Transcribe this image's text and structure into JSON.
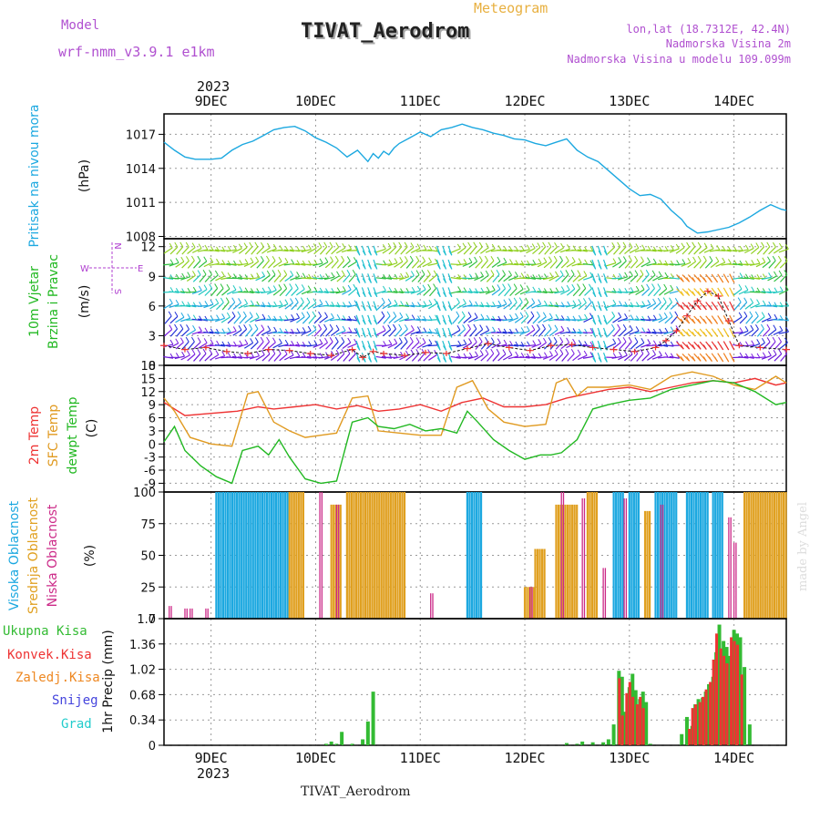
{
  "header": {
    "model_label": "Model",
    "model_name": "wrf-nmm_v3.9.1 e1km",
    "meteogram_label": "Meteogram",
    "station_title": "TIVAT_Aerodrom",
    "coords": "lon,lat (18.7312E, 42.4N)",
    "elevation": "Nadmorska Visina 2m",
    "model_elevation": "Nadmorska Visina u modelu 109.099m",
    "watermark": "made by Angel",
    "footer_station": "TIVAT_Aerodrom"
  },
  "colors": {
    "pressure": "#1ca8e0",
    "wind_title": "#22b822",
    "wind_compass": "#b040d0",
    "temp2m": "#ee3333",
    "sfc": "#e09a20",
    "dewpt": "#22b822",
    "cloud_high": "#1ca8e0",
    "cloud_mid": "#e0a020",
    "cloud_low": "#cc2a88",
    "precip_total": "#33bb33",
    "precip_conv": "#ee3333",
    "precip_frozen": "#ee8822",
    "snow": "#4444dd",
    "hail": "#22cccc",
    "header_purple": "#b050d0",
    "header_orange": "#e8b040"
  },
  "chart_data": [
    {
      "type": "line",
      "panel": "pressure",
      "ylabel": [
        "Pritisak na nivou mora",
        "(hPa)"
      ],
      "yticks": [
        1008,
        1011,
        1014,
        1017
      ],
      "ylim": [
        1007.8,
        1018.8
      ],
      "x_day_labels": [
        "9DEC",
        "10DEC",
        "11DEC",
        "12DEC",
        "13DEC",
        "14DEC"
      ],
      "x_top_year": "2023",
      "x_start_day": 8.55,
      "x_end_day": 14.5,
      "series": [
        {
          "x": [
            8.55,
            8.65,
            8.75,
            8.85,
            9.0,
            9.1,
            9.2,
            9.3,
            9.4,
            9.5,
            9.6,
            9.7,
            9.8,
            9.9,
            10.0,
            10.1,
            10.2,
            10.3,
            10.4,
            10.5,
            10.55,
            10.6,
            10.65,
            10.7,
            10.75,
            10.8,
            10.9,
            11.0,
            11.1,
            11.2,
            11.3,
            11.4,
            11.5,
            11.6,
            11.7,
            11.8,
            11.9,
            12.0,
            12.1,
            12.2,
            12.3,
            12.4,
            12.5,
            12.6,
            12.7,
            12.8,
            12.9,
            13.0,
            13.1,
            13.2,
            13.3,
            13.4,
            13.5,
            13.55,
            13.65,
            13.75,
            13.85,
            13.95,
            14.05,
            14.15,
            14.25,
            14.35,
            14.45,
            14.5
          ],
          "values": [
            1016.3,
            1015.6,
            1015.0,
            1014.8,
            1014.8,
            1014.9,
            1015.6,
            1016.1,
            1016.4,
            1016.9,
            1017.4,
            1017.6,
            1017.7,
            1017.3,
            1016.7,
            1016.3,
            1015.8,
            1015.0,
            1015.6,
            1014.6,
            1015.3,
            1014.9,
            1015.5,
            1015.2,
            1015.8,
            1016.2,
            1016.7,
            1017.2,
            1016.8,
            1017.4,
            1017.6,
            1017.9,
            1017.6,
            1017.4,
            1017.1,
            1016.9,
            1016.6,
            1016.5,
            1016.2,
            1016.0,
            1016.3,
            1016.6,
            1015.6,
            1015.0,
            1014.6,
            1013.8,
            1013.0,
            1012.2,
            1011.6,
            1011.7,
            1011.3,
            1010.3,
            1009.5,
            1008.9,
            1008.3,
            1008.4,
            1008.6,
            1008.8,
            1009.2,
            1009.7,
            1010.3,
            1010.8,
            1010.4,
            1010.3
          ]
        }
      ]
    },
    {
      "type": "scatter",
      "panel": "wind",
      "ylabel": [
        "10m Vjetar",
        "Brzina i Pravac",
        "(m/s)"
      ],
      "compass": [
        "N",
        "S",
        "W",
        "E"
      ],
      "yticks": [
        0,
        3,
        6,
        9,
        12
      ],
      "ylim": [
        0,
        12.8
      ],
      "series": [
        {
          "name": "wind_speed",
          "x": [
            8.55,
            8.75,
            8.95,
            9.15,
            9.35,
            9.55,
            9.75,
            9.95,
            10.15,
            10.35,
            10.45,
            10.55,
            10.65,
            10.85,
            11.05,
            11.25,
            11.45,
            11.65,
            11.85,
            12.05,
            12.25,
            12.45,
            12.65,
            12.85,
            13.05,
            13.25,
            13.35,
            13.45,
            13.55,
            13.65,
            13.75,
            13.85,
            13.95,
            14.05,
            14.25,
            14.5
          ],
          "values": [
            2.0,
            1.6,
            1.8,
            1.4,
            1.2,
            1.6,
            1.5,
            1.2,
            1.0,
            1.6,
            0.8,
            1.4,
            1.2,
            1.0,
            1.3,
            1.2,
            1.7,
            2.2,
            1.8,
            1.5,
            2.0,
            2.1,
            1.8,
            1.6,
            1.4,
            1.8,
            2.5,
            3.5,
            5.0,
            6.5,
            7.5,
            7.0,
            4.5,
            2.0,
            1.8,
            1.6
          ]
        }
      ]
    },
    {
      "type": "line",
      "panel": "temperature",
      "ylabel": [
        "2m Temp",
        "SFC Temp",
        "dewpt Temp",
        "(C)"
      ],
      "yticks": [
        -9,
        -6,
        -3,
        0,
        3,
        6,
        9,
        12,
        15,
        18
      ],
      "ylim": [
        -11,
        18
      ],
      "series": [
        {
          "name": "2m Temp",
          "x": [
            8.55,
            8.75,
            9.0,
            9.25,
            9.45,
            9.6,
            9.8,
            10.0,
            10.2,
            10.4,
            10.6,
            10.8,
            11.0,
            11.2,
            11.4,
            11.6,
            11.8,
            12.0,
            12.2,
            12.4,
            12.6,
            12.8,
            13.0,
            13.2,
            13.4,
            13.6,
            13.8,
            14.0,
            14.2,
            14.4,
            14.5
          ],
          "values": [
            9.5,
            6.5,
            7.0,
            7.5,
            8.5,
            8.0,
            8.5,
            9.0,
            8.0,
            8.8,
            7.5,
            8.0,
            9.0,
            7.5,
            9.5,
            10.5,
            8.5,
            8.5,
            9.0,
            10.5,
            11.5,
            12.5,
            13.0,
            12.0,
            13.0,
            14.0,
            14.5,
            14.0,
            15.0,
            13.5,
            14.0
          ]
        },
        {
          "name": "SFC Temp",
          "x": [
            8.55,
            8.65,
            8.8,
            9.0,
            9.2,
            9.35,
            9.45,
            9.6,
            9.75,
            9.9,
            10.05,
            10.2,
            10.35,
            10.5,
            10.6,
            10.8,
            11.0,
            11.2,
            11.35,
            11.5,
            11.65,
            11.8,
            12.0,
            12.2,
            12.3,
            12.4,
            12.5,
            12.6,
            12.8,
            13.0,
            13.2,
            13.4,
            13.6,
            13.8,
            14.0,
            14.2,
            14.4,
            14.5
          ],
          "values": [
            10.5,
            7.5,
            1.5,
            0.0,
            -0.5,
            11.5,
            12.0,
            5.0,
            3.0,
            1.5,
            2.0,
            2.5,
            10.5,
            11.0,
            3.0,
            2.5,
            2.0,
            2.0,
            13.0,
            14.5,
            8.0,
            5.0,
            4.0,
            4.5,
            14.0,
            15.0,
            11.0,
            13.0,
            13.0,
            13.5,
            12.5,
            15.5,
            16.5,
            15.5,
            13.5,
            12.5,
            15.5,
            14.0
          ]
        },
        {
          "name": "dewpt Temp",
          "x": [
            8.55,
            8.65,
            8.75,
            8.9,
            9.05,
            9.2,
            9.3,
            9.45,
            9.55,
            9.65,
            9.75,
            9.9,
            10.05,
            10.2,
            10.35,
            10.5,
            10.6,
            10.75,
            10.9,
            11.05,
            11.2,
            11.35,
            11.45,
            11.55,
            11.7,
            11.85,
            12.0,
            12.15,
            12.25,
            12.35,
            12.5,
            12.65,
            12.8,
            13.0,
            13.2,
            13.4,
            13.6,
            13.8,
            14.0,
            14.2,
            14.4,
            14.5
          ],
          "values": [
            0.5,
            4.0,
            -1.5,
            -5.0,
            -7.5,
            -9.0,
            -1.5,
            -0.5,
            -2.5,
            1.0,
            -3.0,
            -8.0,
            -9.0,
            -8.5,
            5.0,
            6.0,
            4.0,
            3.5,
            4.5,
            3.0,
            3.5,
            2.5,
            7.5,
            5.0,
            1.0,
            -1.5,
            -3.5,
            -2.5,
            -2.5,
            -2.0,
            1.0,
            8.0,
            9.0,
            10.0,
            10.5,
            12.5,
            13.5,
            14.5,
            14.0,
            12.0,
            9.0,
            9.5
          ]
        }
      ]
    },
    {
      "type": "bar",
      "panel": "cloud",
      "ylabel": [
        "Visoka Oblacnost",
        "Srednja Oblacnost",
        "Niska Oblacnost",
        "(%)"
      ],
      "yticks": [
        0,
        25,
        50,
        75,
        100
      ],
      "ylim": [
        0,
        100
      ],
      "series": [
        {
          "name": "Visoka Oblacnost",
          "segments": [
            [
              9.05,
              9.6,
              100
            ],
            [
              9.6,
              9.75,
              100
            ],
            [
              11.45,
              11.6,
              100
            ],
            [
              12.85,
              12.95,
              100
            ],
            [
              13.0,
              13.1,
              100
            ],
            [
              13.25,
              13.45,
              100
            ],
            [
              13.55,
              13.75,
              100
            ],
            [
              13.8,
              13.9,
              100
            ]
          ]
        },
        {
          "name": "Srednja Oblacnost",
          "segments": [
            [
              9.75,
              9.9,
              100
            ],
            [
              10.15,
              10.25,
              90
            ],
            [
              10.3,
              10.85,
              100
            ],
            [
              12.0,
              12.1,
              25
            ],
            [
              12.1,
              12.2,
              55
            ],
            [
              12.3,
              12.5,
              90
            ],
            [
              12.6,
              12.7,
              100
            ],
            [
              13.15,
              13.2,
              85
            ],
            [
              14.1,
              14.5,
              100
            ]
          ]
        },
        {
          "name": "Niska Oblacnost",
          "segments": [
            [
              8.6,
              8.62,
              10
            ],
            [
              8.75,
              8.77,
              8
            ],
            [
              8.8,
              8.82,
              8
            ],
            [
              8.95,
              8.97,
              8
            ],
            [
              10.04,
              10.06,
              100
            ],
            [
              10.2,
              10.22,
              90
            ],
            [
              11.1,
              11.12,
              20
            ],
            [
              12.05,
              12.07,
              25
            ],
            [
              12.35,
              12.37,
              100
            ],
            [
              12.55,
              12.57,
              95
            ],
            [
              12.75,
              12.77,
              40
            ],
            [
              12.95,
              12.97,
              95
            ],
            [
              13.3,
              13.32,
              90
            ],
            [
              13.95,
              13.97,
              80
            ],
            [
              14.0,
              14.02,
              60
            ]
          ]
        }
      ]
    },
    {
      "type": "bar",
      "panel": "precip",
      "ylabel": [
        "1hr Precip (mm)"
      ],
      "legend": [
        "Ukupna Kisa",
        "Konvek.Kisa",
        "Zaledj.Kisa",
        "Snijeg",
        "Grad"
      ],
      "yticks": [
        0,
        0.34,
        0.68,
        1.02,
        1.36,
        1.7
      ],
      "ylim": [
        0,
        1.7
      ],
      "x_bottom_year": "2023",
      "series": [
        {
          "name": "Ukupna Kisa",
          "x": [
            10.1,
            10.15,
            10.2,
            10.25,
            10.35,
            10.45,
            10.5,
            10.55,
            12.4,
            12.5,
            12.55,
            12.65,
            12.75,
            12.8,
            12.85,
            12.9,
            12.93,
            12.96,
            13.0,
            13.03,
            13.06,
            13.1,
            13.13,
            13.16,
            13.2,
            13.5,
            13.55,
            13.6,
            13.63,
            13.66,
            13.7,
            13.73,
            13.76,
            13.8,
            13.83,
            13.86,
            13.9,
            13.93,
            13.96,
            14.0,
            14.03,
            14.06,
            14.1,
            14.15
          ],
          "values": [
            0.02,
            0.05,
            0.02,
            0.18,
            0.02,
            0.08,
            0.32,
            0.72,
            0.03,
            0.02,
            0.05,
            0.04,
            0.04,
            0.08,
            0.28,
            1.0,
            0.92,
            0.45,
            0.78,
            0.96,
            0.74,
            0.62,
            0.72,
            0.58,
            0.02,
            0.15,
            0.38,
            0.26,
            0.55,
            0.62,
            0.64,
            0.72,
            0.82,
            0.92,
            1.25,
            1.62,
            1.4,
            1.32,
            1.2,
            1.55,
            1.5,
            1.45,
            1.05,
            0.28
          ]
        },
        {
          "name": "Konvek.Kisa",
          "x": [
            12.93,
            12.96,
            13.0,
            13.03,
            13.06,
            13.1,
            13.13,
            13.16,
            13.6,
            13.63,
            13.66,
            13.7,
            13.73,
            13.76,
            13.8,
            13.83,
            13.86,
            13.9,
            13.93,
            13.96,
            14.0,
            14.03,
            14.06,
            14.1
          ],
          "values": [
            0.9,
            0.4,
            0.7,
            0.85,
            0.65,
            0.55,
            0.65,
            0.5,
            0.22,
            0.5,
            0.55,
            0.58,
            0.65,
            0.75,
            0.85,
            1.15,
            1.5,
            1.3,
            1.2,
            1.1,
            1.45,
            1.4,
            1.35,
            0.95
          ]
        }
      ]
    }
  ]
}
